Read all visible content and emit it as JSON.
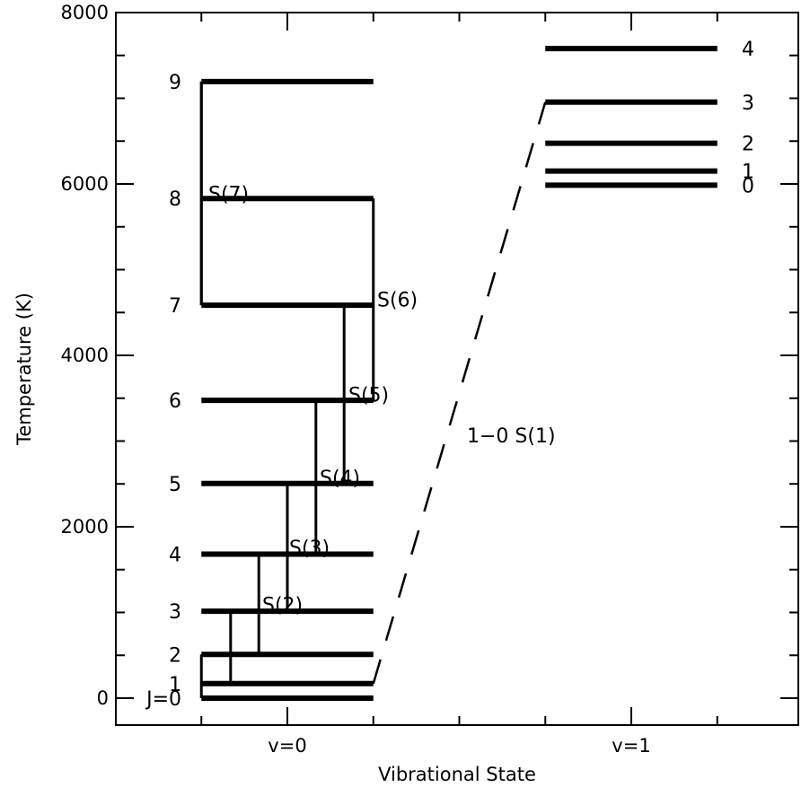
{
  "chart_data": {
    "type": "diagram",
    "xlabel": "Vibrational State",
    "ylabel": "Temperature (K)",
    "ylim": [
      -300,
      8000
    ],
    "xlim": [
      -0.5,
      1.5
    ],
    "y_ticks": [
      "0",
      "2000",
      "4000",
      "6000",
      "8000"
    ],
    "y_tick_values": [
      0,
      2000,
      4000,
      6000,
      8000
    ],
    "x_ticks": [
      "v=0",
      "v=1"
    ],
    "x_tick_values": [
      0,
      1
    ],
    "v0_levels": [
      {
        "label": "J=0",
        "energy": 0
      },
      {
        "label": "1",
        "energy": 170
      },
      {
        "label": "2",
        "energy": 510
      },
      {
        "label": "3",
        "energy": 1015
      },
      {
        "label": "4",
        "energy": 1680
      },
      {
        "label": "5",
        "energy": 2505
      },
      {
        "label": "6",
        "energy": 3475
      },
      {
        "label": "7",
        "energy": 4585
      },
      {
        "label": "8",
        "energy": 5830
      },
      {
        "label": "9",
        "energy": 7195
      }
    ],
    "v1_levels": [
      {
        "label": "0",
        "energy": 5985
      },
      {
        "label": "1",
        "energy": 6150
      },
      {
        "label": "2",
        "energy": 6475
      },
      {
        "label": "3",
        "energy": 6955
      },
      {
        "label": "4",
        "energy": 7580
      }
    ],
    "transitions": [
      {
        "label": "S(2)",
        "lower": "2",
        "upper": "4"
      },
      {
        "label": "S(3)",
        "lower": "3",
        "upper": "5"
      },
      {
        "label": "S(4)",
        "lower": "4",
        "upper": "6"
      },
      {
        "label": "S(5)",
        "lower": "5",
        "upper": "7"
      },
      {
        "label": "S(6)",
        "lower": "6",
        "upper": "8"
      },
      {
        "label": "S(7)",
        "lower": "7",
        "upper": "9"
      }
    ],
    "extra_label": "1−0 S(1)"
  }
}
